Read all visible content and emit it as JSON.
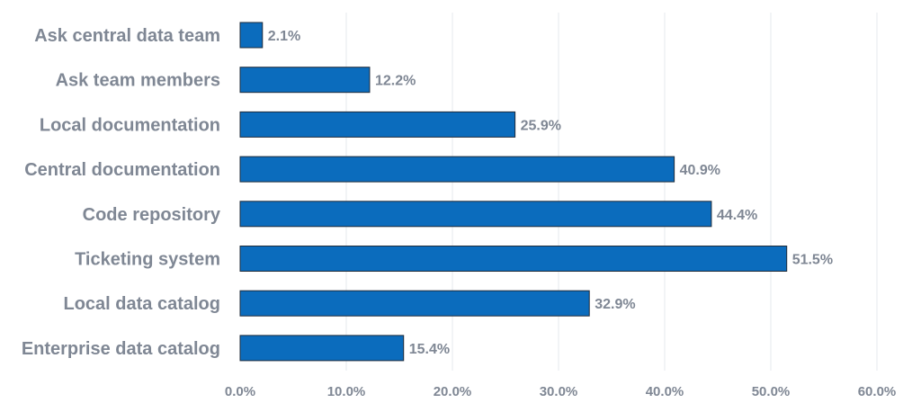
{
  "chart_data": {
    "type": "bar",
    "orientation": "horizontal",
    "categories": [
      "Ask central data team",
      "Ask team members",
      "Local documentation",
      "Central documentation",
      "Code repository",
      "Ticketing system",
      "Local data catalog",
      "Enterprise data catalog"
    ],
    "values": [
      2.1,
      12.2,
      25.9,
      40.9,
      44.4,
      51.5,
      32.9,
      15.4
    ],
    "value_labels": [
      "2.1%",
      "12.2%",
      "25.9%",
      "40.9%",
      "44.4%",
      "51.5%",
      "32.9%",
      "15.4%"
    ],
    "xlim": [
      0,
      60
    ],
    "x_ticks": [
      0,
      10,
      20,
      30,
      40,
      50,
      60
    ],
    "x_tick_labels": [
      "0.0%",
      "10.0%",
      "20.0%",
      "30.0%",
      "40.0%",
      "50.0%",
      "60.0%"
    ],
    "title": "",
    "xlabel": "",
    "ylabel": "",
    "grid": true,
    "legend": "none",
    "colors": {
      "bar": "#0b6cbd",
      "bar_outline": "#1f2b3a",
      "label": "#7f8794",
      "grid": "#e6e8ec"
    }
  }
}
